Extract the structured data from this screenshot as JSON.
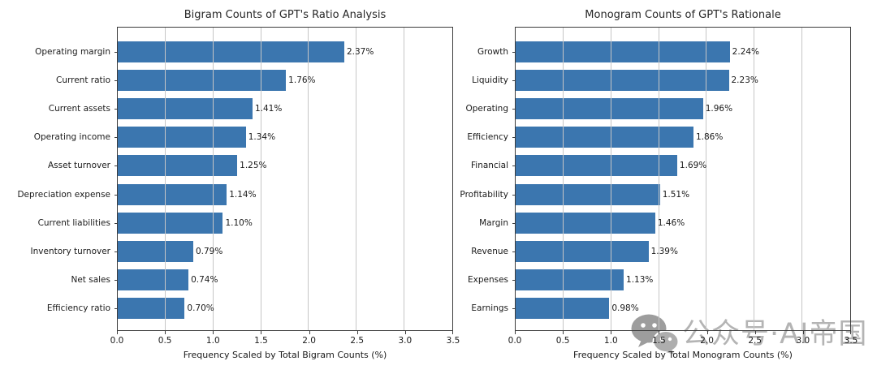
{
  "colors": {
    "bar": "#3b76af",
    "grid": "#c6c6c6",
    "spine": "#3c3c3c",
    "text": "#1a1a1a",
    "watermark": "#b4b4b4"
  },
  "watermark": {
    "icon": "wechat-icon",
    "text": "公众号·AI帝国"
  },
  "chart_data": [
    {
      "type": "bar",
      "orientation": "horizontal",
      "title": "Bigram Counts of GPT's Ratio Analysis",
      "xlabel": "Frequency Scaled by Total Bigram Counts (%)",
      "categories": [
        "Operating margin",
        "Current ratio",
        "Current assets",
        "Operating income",
        "Asset turnover",
        "Depreciation expense",
        "Current liabilities",
        "Inventory turnover",
        "Net sales",
        "Efficiency ratio"
      ],
      "values": [
        2.37,
        1.76,
        1.41,
        1.34,
        1.25,
        1.14,
        1.1,
        0.79,
        0.74,
        0.7
      ],
      "bar_labels": [
        "2.37%",
        "1.76%",
        "1.41%",
        "1.34%",
        "1.25%",
        "1.14%",
        "1.10%",
        "0.79%",
        "0.74%",
        "0.70%"
      ],
      "xlim": [
        0,
        3.5
      ],
      "xticks": [
        "0.0",
        "0.5",
        "1.0",
        "1.5",
        "2.0",
        "2.5",
        "3.0",
        "3.5"
      ],
      "grid": true,
      "legend": false
    },
    {
      "type": "bar",
      "orientation": "horizontal",
      "title": "Monogram Counts of GPT's Rationale",
      "xlabel": "Frequency Scaled by Total Monogram Counts (%)",
      "categories": [
        "Growth",
        "Liquidity",
        "Operating",
        "Efficiency",
        "Financial",
        "Profitability",
        "Margin",
        "Revenue",
        "Expenses",
        "Earnings"
      ],
      "values": [
        2.24,
        2.23,
        1.96,
        1.86,
        1.69,
        1.51,
        1.46,
        1.39,
        1.13,
        0.98
      ],
      "bar_labels": [
        "2.24%",
        "2.23%",
        "1.96%",
        "1.86%",
        "1.69%",
        "1.51%",
        "1.46%",
        "1.39%",
        "1.13%",
        "0.98%"
      ],
      "xlim": [
        0,
        3.5
      ],
      "xticks": [
        "0.0",
        "0.5",
        "1.0",
        "1.5",
        "2.0",
        "2.5",
        "3.0",
        "3.5"
      ],
      "grid": true,
      "legend": false
    }
  ]
}
